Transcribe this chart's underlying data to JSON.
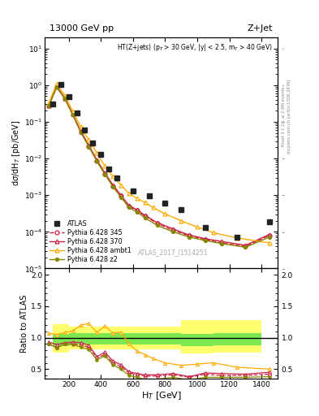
{
  "title_left": "13000 GeV pp",
  "title_right": "Z+Jet",
  "annotation": "HT(Z+jets) (p$_{T}$ > 30 GeV, |y| < 2.5, m$_{T}$ > 40 GeV)",
  "watermark": "ATLAS_2017_I1514251",
  "ylabel_main": "dσ/dH$_T$ [pb/GeV]",
  "ylabel_ratio": "Ratio to ATLAS",
  "xlabel": "H$_T$ [GeV]",
  "right_label1": "Rivet 3.1.10, ≥ 2.9M events",
  "right_label2": "mcplots.cern.ch [arXiv:1306.3436]",
  "atlas_x": [
    100,
    150,
    200,
    250,
    300,
    350,
    400,
    450,
    500,
    600,
    700,
    800,
    900,
    1050,
    1250,
    1450
  ],
  "atlas_y": [
    0.3,
    1.05,
    0.48,
    0.175,
    0.06,
    0.026,
    0.013,
    0.0052,
    0.003,
    0.0013,
    0.00095,
    0.0006,
    0.0004,
    0.00013,
    7.2e-05,
    0.00019
  ],
  "py345_x": [
    75,
    125,
    175,
    225,
    275,
    325,
    375,
    425,
    475,
    525,
    575,
    625,
    675,
    750,
    850,
    950,
    1050,
    1150,
    1300,
    1450
  ],
  "py345_y": [
    0.27,
    0.88,
    0.43,
    0.158,
    0.053,
    0.022,
    0.0088,
    0.0038,
    0.0018,
    0.00095,
    0.0005,
    0.00038,
    0.00027,
    0.00017,
    0.00011,
    7.8e-05,
    6.2e-05,
    5e-05,
    4e-05,
    8e-05
  ],
  "py370_x": [
    75,
    125,
    175,
    225,
    275,
    325,
    375,
    425,
    475,
    525,
    575,
    625,
    675,
    750,
    850,
    950,
    1050,
    1150,
    1300,
    1450
  ],
  "py370_y": [
    0.28,
    0.93,
    0.44,
    0.162,
    0.055,
    0.023,
    0.0091,
    0.004,
    0.0019,
    0.001,
    0.00052,
    0.0004,
    0.00028,
    0.00018,
    0.00012,
    8.2e-05,
    6.5e-05,
    5.5e-05,
    4.3e-05,
    8.5e-05
  ],
  "pyambt1_x": [
    75,
    125,
    175,
    225,
    275,
    325,
    375,
    425,
    475,
    525,
    575,
    625,
    675,
    725,
    800,
    900,
    1000,
    1100,
    1250,
    1450
  ],
  "pyambt1_y": [
    0.32,
    1.1,
    0.52,
    0.195,
    0.072,
    0.032,
    0.014,
    0.0062,
    0.0032,
    0.0019,
    0.0011,
    0.00082,
    0.00063,
    0.00046,
    0.00031,
    0.0002,
    0.000135,
    9.5e-05,
    6.8e-05,
    5e-05
  ],
  "pyz2_x": [
    75,
    125,
    175,
    225,
    275,
    325,
    375,
    425,
    475,
    525,
    575,
    625,
    675,
    750,
    850,
    950,
    1050,
    1150,
    1300,
    1450
  ],
  "pyz2_y": [
    0.27,
    0.88,
    0.43,
    0.155,
    0.051,
    0.021,
    0.0084,
    0.0037,
    0.0017,
    0.00088,
    0.00046,
    0.00035,
    0.00024,
    0.00015,
    0.0001,
    7.2e-05,
    5.8e-05,
    4.8e-05,
    3.8e-05,
    7.2e-05
  ],
  "ratio_py345_x": [
    75,
    125,
    175,
    225,
    275,
    325,
    375,
    425,
    475,
    525,
    575,
    625,
    675,
    750,
    850,
    950,
    1050,
    1150,
    1300,
    1450
  ],
  "ratio_py345_y": [
    0.9,
    0.84,
    0.9,
    0.9,
    0.88,
    0.85,
    0.68,
    0.73,
    0.6,
    0.54,
    0.44,
    0.41,
    0.39,
    0.39,
    0.41,
    0.37,
    0.42,
    0.4,
    0.4,
    0.42
  ],
  "ratio_py370_x": [
    75,
    125,
    175,
    225,
    275,
    325,
    375,
    425,
    475,
    525,
    575,
    625,
    675,
    750,
    850,
    950,
    1050,
    1150,
    1300,
    1450
  ],
  "ratio_py370_y": [
    0.93,
    0.89,
    0.92,
    0.93,
    0.92,
    0.88,
    0.7,
    0.77,
    0.63,
    0.57,
    0.46,
    0.43,
    0.41,
    0.41,
    0.43,
    0.38,
    0.44,
    0.43,
    0.42,
    0.45
  ],
  "ratio_pyambt1_x": [
    75,
    125,
    175,
    225,
    275,
    325,
    375,
    425,
    475,
    525,
    575,
    625,
    675,
    725,
    800,
    900,
    1000,
    1100,
    1250,
    1450
  ],
  "ratio_pyambt1_y": [
    1.07,
    1.05,
    1.08,
    1.11,
    1.2,
    1.23,
    1.08,
    1.19,
    1.07,
    1.09,
    0.9,
    0.79,
    0.73,
    0.67,
    0.6,
    0.56,
    0.58,
    0.6,
    0.53,
    0.5
  ],
  "ratio_pyz2_x": [
    75,
    125,
    175,
    225,
    275,
    325,
    375,
    425,
    475,
    525,
    575,
    625,
    675,
    750,
    850,
    950,
    1050,
    1150,
    1300,
    1450
  ],
  "ratio_pyz2_y": [
    0.9,
    0.84,
    0.9,
    0.89,
    0.85,
    0.81,
    0.65,
    0.71,
    0.57,
    0.5,
    0.4,
    0.37,
    0.34,
    0.34,
    0.37,
    0.33,
    0.37,
    0.37,
    0.37,
    0.38
  ],
  "band_yellow_edges": [
    100,
    200,
    300,
    500,
    700,
    900,
    1100,
    1400
  ],
  "band_yellow_lo": [
    0.76,
    0.82,
    0.82,
    0.82,
    0.82,
    0.75,
    0.76,
    0.76
  ],
  "band_yellow_hi": [
    1.22,
    1.18,
    1.18,
    1.18,
    1.18,
    1.28,
    1.28,
    1.28
  ],
  "band_green_edges": [
    100,
    200,
    300,
    500,
    700,
    900,
    1100,
    1400
  ],
  "band_green_lo": [
    0.87,
    0.89,
    0.89,
    0.89,
    0.89,
    0.87,
    0.88,
    0.88
  ],
  "band_green_hi": [
    1.06,
    1.07,
    1.07,
    1.07,
    1.07,
    1.06,
    1.07,
    1.07
  ],
  "color_atlas": "#222222",
  "color_py345": "#cc2244",
  "color_py370": "#cc2244",
  "color_pyambt1": "#ffaa00",
  "color_pyz2": "#888800",
  "color_green": "#44dd44",
  "color_yellow": "#ffff55",
  "xlim": [
    50,
    1500
  ],
  "ylim_main": [
    1e-05,
    20
  ],
  "ylim_ratio": [
    0.35,
    2.1
  ],
  "ratio_yticks": [
    0.5,
    1.0,
    1.5,
    2.0
  ]
}
